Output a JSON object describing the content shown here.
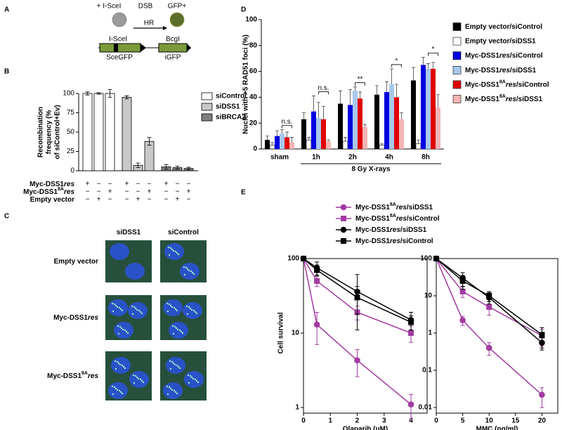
{
  "panel_labels": [
    "A",
    "B",
    "C",
    "D",
    "E"
  ],
  "diagram": {
    "top_left": "+ I-SceI",
    "dsb": "DSB",
    "gfp": "GFP+",
    "hr": "HR",
    "site1": "I-SceI",
    "site2": "BcgI",
    "gene1": "SceGFP",
    "gene2": "iGFP"
  },
  "micrographs": {
    "columns": [
      "siDSS1",
      "siControl"
    ],
    "rows": [
      {
        "text": "Empty vector"
      },
      {
        "text": "Myc-DSS1",
        "italic": "res"
      },
      {
        "text": "Myc-DSS1",
        "sup": "8A",
        "italic": "res"
      }
    ]
  },
  "chart_data": [
    {
      "type": "bar",
      "y_label": [
        "Recombination",
        "frequency (%",
        "of siControl+Ev)"
      ],
      "ylim": [
        0,
        100
      ],
      "yticks": [
        0,
        25,
        50,
        75,
        100
      ],
      "series": [
        {
          "name": "siControl",
          "color": "#ffffff",
          "values": [
            100,
            100,
            100
          ],
          "errors": [
            2,
            1,
            5
          ]
        },
        {
          "name": "siDSS1",
          "color": "#c8c8c8",
          "values": [
            95,
            7,
            38
          ],
          "errors": [
            2,
            3,
            5
          ]
        },
        {
          "name": "siBRCA2",
          "color": "#7f7f7f",
          "values": [
            5,
            4,
            3
          ],
          "errors": [
            3,
            2,
            1.5
          ]
        }
      ],
      "conditions": [
        {
          "label": {
            "text": "Myc-DSS1",
            "italic": "res"
          },
          "signs": [
            "+",
            "−",
            "−",
            "+",
            "−",
            "−",
            "+",
            "−",
            "−"
          ]
        },
        {
          "label": {
            "text": "Myc-DSS1",
            "sup": "8A",
            "italic": "res"
          },
          "signs": [
            "−",
            "−",
            "+",
            "−",
            "−",
            "+",
            "−",
            "−",
            "+"
          ]
        },
        {
          "label": {
            "text": "Empty vector"
          },
          "signs": [
            "−",
            "+",
            "−",
            "−",
            "+",
            "−",
            "−",
            "+",
            "−"
          ]
        }
      ]
    },
    {
      "type": "grouped_bar",
      "y_label": "Nuclei with >5 RAD51 foci (%)",
      "x_label": "8 Gy X-rays",
      "categories": [
        "sham",
        "1h",
        "2h",
        "4h",
        "8h"
      ],
      "ylim": [
        0,
        100
      ],
      "yticks": [
        0,
        20,
        40,
        60,
        80,
        100
      ],
      "annotations": [
        "n.s.",
        "n.s.",
        "**",
        "*",
        "*"
      ],
      "series": [
        {
          "name": {
            "text": "Empty vector/siControl"
          },
          "color": "#000000",
          "values": [
            7,
            23,
            35,
            42,
            53
          ],
          "errors": [
            3,
            5,
            10,
            7,
            10
          ]
        },
        {
          "name": {
            "text": "Empty vector/siDSS1"
          },
          "color": "#ffffff",
          "values": [
            3,
            7,
            6,
            3,
            4
          ],
          "errors": [
            2,
            2,
            3,
            1,
            3
          ]
        },
        {
          "name": {
            "text": "Myc-DSS1",
            "italic": "res",
            "tail": "/siControl"
          },
          "color": "#0000e0",
          "values": [
            10,
            29,
            34,
            44,
            65
          ],
          "errors": [
            4,
            12,
            12,
            8,
            6
          ]
        },
        {
          "name": {
            "text": "Myc-DSS1",
            "italic": "res",
            "tail": "/siDSS1"
          },
          "color": "#a8c8ec",
          "values": [
            12,
            24,
            45,
            50,
            62
          ],
          "errors": [
            3,
            12,
            3,
            12,
            4
          ]
        },
        {
          "name": {
            "text": "Myc-DSS1",
            "sup": "8A",
            "italic": "res",
            "tail": "/siControl"
          },
          "color": "#e00000",
          "values": [
            9,
            23,
            39,
            40,
            62
          ],
          "errors": [
            4,
            10,
            5,
            10,
            5
          ]
        },
        {
          "name": {
            "text": "Myc-DSS1",
            "sup": "8A",
            "italic": "res",
            "tail": "/siDSS1"
          },
          "color": "#f4b4b4",
          "values": [
            5,
            6,
            17,
            23,
            32
          ],
          "errors": [
            4,
            1,
            2,
            5,
            10
          ]
        }
      ]
    },
    {
      "type": "line",
      "log_y": true,
      "y_label": "Cell survival",
      "x_label": "Olaparib (μM)",
      "x": [
        0,
        0.5,
        2,
        4
      ],
      "xlim": [
        0,
        4.6
      ],
      "xticks": [
        0,
        1,
        2,
        3,
        4
      ],
      "ylim": [
        1,
        100
      ],
      "yticks": [
        1,
        10,
        100
      ],
      "series": [
        {
          "name": {
            "text": "Myc-DSS1",
            "sup": "8A",
            "italic": "res",
            "tail": "/siDSS1"
          },
          "color": "#a23ba1",
          "marker": "circle",
          "values": [
            100,
            13,
            4.3,
            1.1
          ],
          "errors": [
            0,
            6,
            1.7,
            0.4
          ]
        },
        {
          "name": {
            "text": "Myc-DSS1",
            "sup": "8A",
            "italic": "res",
            "tail": "/siControl"
          },
          "color": "#a23ba1",
          "marker": "square",
          "values": [
            100,
            50,
            19,
            10
          ],
          "errors": [
            0,
            8,
            4,
            2.5
          ]
        },
        {
          "name": {
            "text": "Myc-DSS1",
            "italic": "res",
            "tail": "/siDSS1"
          },
          "color": "#000000",
          "marker": "circle",
          "values": [
            100,
            75,
            36,
            15
          ],
          "errors": [
            0,
            15,
            25,
            4
          ]
        },
        {
          "name": {
            "text": "Myc-DSS1",
            "italic": "res",
            "tail": "/siControl"
          },
          "color": "#000000",
          "marker": "square",
          "values": [
            100,
            70,
            30,
            14
          ],
          "errors": [
            0,
            12,
            12,
            3
          ]
        }
      ]
    },
    {
      "type": "line",
      "log_y": true,
      "x_label": "MMC (ng/ml)",
      "x": [
        0,
        5,
        10,
        20
      ],
      "xlim": [
        0,
        23
      ],
      "xticks": [
        0,
        5,
        10,
        15,
        20
      ],
      "ylim": [
        0.01,
        100
      ],
      "yticks": [
        0.01,
        0.1,
        1,
        10,
        100
      ],
      "series": [
        {
          "color": "#a23ba1",
          "marker": "circle",
          "values": [
            100,
            2.2,
            0.4,
            0.022
          ],
          "errors": [
            0,
            0.6,
            0.15,
            0.012
          ]
        },
        {
          "color": "#a23ba1",
          "marker": "square",
          "values": [
            100,
            13,
            5,
            0.85
          ],
          "errors": [
            0,
            4,
            2,
            0.4
          ]
        },
        {
          "color": "#000000",
          "marker": "circle",
          "values": [
            100,
            30,
            9,
            0.55
          ],
          "errors": [
            0,
            12,
            3,
            0.2
          ]
        },
        {
          "color": "#000000",
          "marker": "square",
          "values": [
            100,
            25,
            10,
            0.9
          ],
          "errors": [
            0,
            10,
            3,
            0.5
          ]
        }
      ]
    }
  ]
}
